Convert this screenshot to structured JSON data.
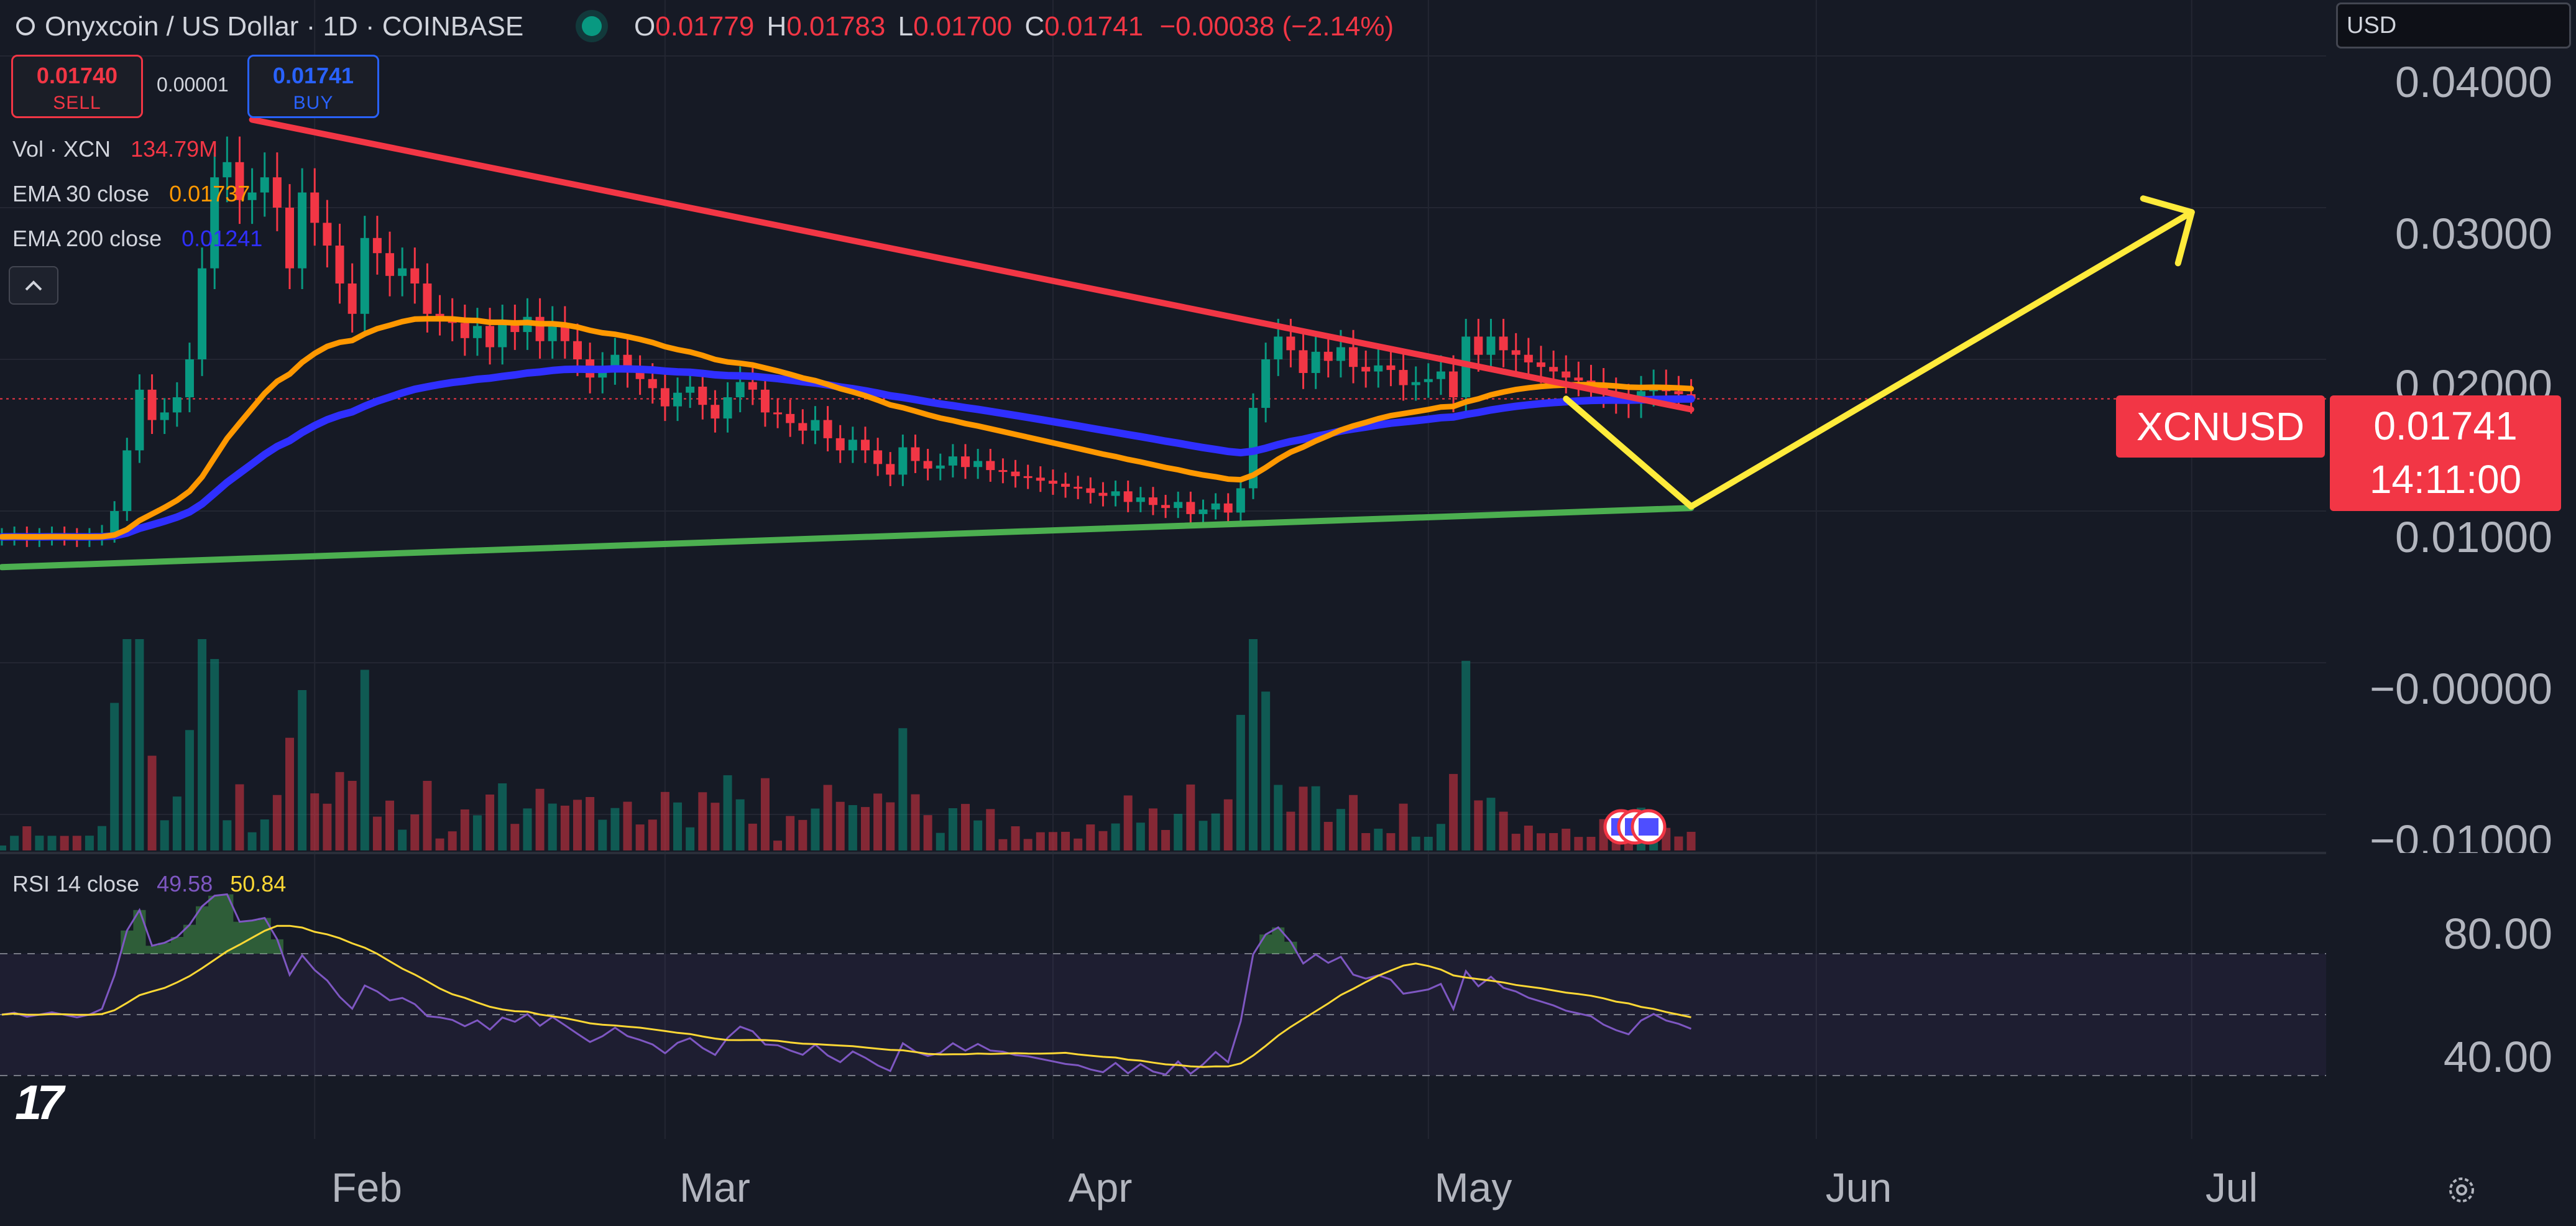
{
  "header": {
    "title": "Onyxcoin / US Dollar · 1D · COINBASE",
    "ohlc": [
      {
        "label": "O",
        "value": "0.01779"
      },
      {
        "label": "H",
        "value": "0.01783"
      },
      {
        "label": "L",
        "value": "0.01700"
      },
      {
        "label": "C",
        "value": "0.01741"
      }
    ],
    "change": "−0.00038 (−2.14%)"
  },
  "trade": {
    "sell_price": "0.01740",
    "sell_label": "SELL",
    "spread": "0.00001",
    "buy_price": "0.01741",
    "buy_label": "BUY"
  },
  "currency": {
    "selected": "USD"
  },
  "legend": {
    "vol_label": "Vol · XCN",
    "vol_value": "134.79M",
    "ema30_label": "EMA 30 close",
    "ema30_value": "0.01737",
    "ema200_label": "EMA 200 close",
    "ema200_value": "0.01241"
  },
  "rsi_legend": {
    "label": "RSI 14 close",
    "rsi_value": "49.58",
    "ma_value": "50.84"
  },
  "price_badge": {
    "symbol": "XCNUSD",
    "price": "0.01741",
    "countdown": "14:11:00"
  },
  "price_axis": [
    "0.04000",
    "0.03000",
    "0.02000",
    "0.01000",
    "−0.00000",
    "−0.01000"
  ],
  "rsi_axis": [
    "80.00",
    "40.00"
  ],
  "time_axis": [
    "Feb",
    "Mar",
    "Apr",
    "May",
    "Jun",
    "Jul"
  ],
  "logo_text": "17",
  "colors": {
    "background": "#161a25",
    "up": "#089981",
    "down": "#f23645",
    "ema30": "#ff9800",
    "ema200": "#2f2fff",
    "resistance": "#f23645",
    "support": "#4caf50",
    "projection": "#ffeb3b",
    "rsi": "#7e57c2",
    "rsi_ma": "#fdd835"
  },
  "icons": [
    "collapse-chevron-icon",
    "flag-event-icon",
    "settings-icon",
    "tradingview-logo-icon"
  ],
  "chart_data": {
    "type": "candlestick",
    "title": "Onyxcoin / US Dollar · 1D · COINBASE",
    "x_ticks": [
      "Feb",
      "Mar",
      "Apr",
      "May",
      "Jun",
      "Jul"
    ],
    "y_ticks": [
      -0.01,
      0.0,
      0.01,
      0.02,
      0.03,
      0.04
    ],
    "ylim": [
      -0.0105,
      0.0435
    ],
    "start_date": "2025-01-07",
    "x_dates": [
      "2025-02-01",
      "2025-03-01",
      "2025-04-01",
      "2025-05-01",
      "2025-06-01",
      "2025-07-01"
    ],
    "candles_close": [
      0.0083,
      0.0084,
      0.0082,
      0.0083,
      0.0084,
      0.0083,
      0.0082,
      0.0083,
      0.0085,
      0.01,
      0.014,
      0.018,
      0.016,
      0.0165,
      0.0175,
      0.02,
      0.026,
      0.032,
      0.033,
      0.0305,
      0.031,
      0.032,
      0.03,
      0.026,
      0.031,
      0.029,
      0.0275,
      0.025,
      0.023,
      0.028,
      0.027,
      0.0255,
      0.026,
      0.025,
      0.023,
      0.0228,
      0.0224,
      0.0214,
      0.0222,
      0.0208,
      0.0224,
      0.0218,
      0.0228,
      0.0212,
      0.0223,
      0.0212,
      0.02,
      0.0188,
      0.0194,
      0.0203,
      0.0192,
      0.0187,
      0.0181,
      0.0169,
      0.0178,
      0.0182,
      0.017,
      0.0161,
      0.0175,
      0.0185,
      0.018,
      0.0165,
      0.0164,
      0.0158,
      0.0153,
      0.016,
      0.0148,
      0.014,
      0.0147,
      0.014,
      0.0131,
      0.0124,
      0.0142,
      0.0133,
      0.0128,
      0.013,
      0.0136,
      0.0129,
      0.0133,
      0.0127,
      0.0126,
      0.0123,
      0.0122,
      0.012,
      0.0118,
      0.0116,
      0.0115,
      0.0112,
      0.011,
      0.0113,
      0.0106,
      0.0109,
      0.0104,
      0.0102,
      0.0106,
      0.0098,
      0.0101,
      0.0105,
      0.0099,
      0.0115,
      0.0168,
      0.02,
      0.0215,
      0.0206,
      0.0191,
      0.0205,
      0.0199,
      0.0208,
      0.0195,
      0.0192,
      0.0196,
      0.0193,
      0.0183,
      0.0185,
      0.0187,
      0.0192,
      0.0175,
      0.0215,
      0.0203,
      0.0215,
      0.0206,
      0.0203,
      0.0198,
      0.0195,
      0.0192,
      0.0188,
      0.0186,
      0.0184,
      0.0178,
      0.0174,
      0.0171,
      0.0179,
      0.0183,
      0.0179,
      0.0177,
      0.0174
    ],
    "ema30_end": 0.01737,
    "ema200_end": 0.01241,
    "volume_unit": "M",
    "last_volume": "134.79M",
    "rsi_period": 14,
    "rsi_last": 49.58,
    "rsi_ma_last": 50.84,
    "rsi_ylim": [
      20,
      100
    ],
    "rsi_bands": [
      70,
      50,
      30
    ],
    "trendlines": [
      {
        "name": "resistance",
        "points": [
          [
            "2025-01-27",
            0.0358
          ],
          [
            "2025-05-22",
            0.0167
          ]
        ]
      },
      {
        "name": "support",
        "points": [
          [
            "2025-01-07",
            0.0063
          ],
          [
            "2025-05-22",
            0.0102
          ]
        ]
      },
      {
        "name": "projection",
        "points": [
          [
            "2025-05-12",
            0.0174
          ],
          [
            "2025-05-22",
            0.0103
          ],
          [
            "2025-07-01",
            0.0297
          ]
        ]
      }
    ]
  }
}
